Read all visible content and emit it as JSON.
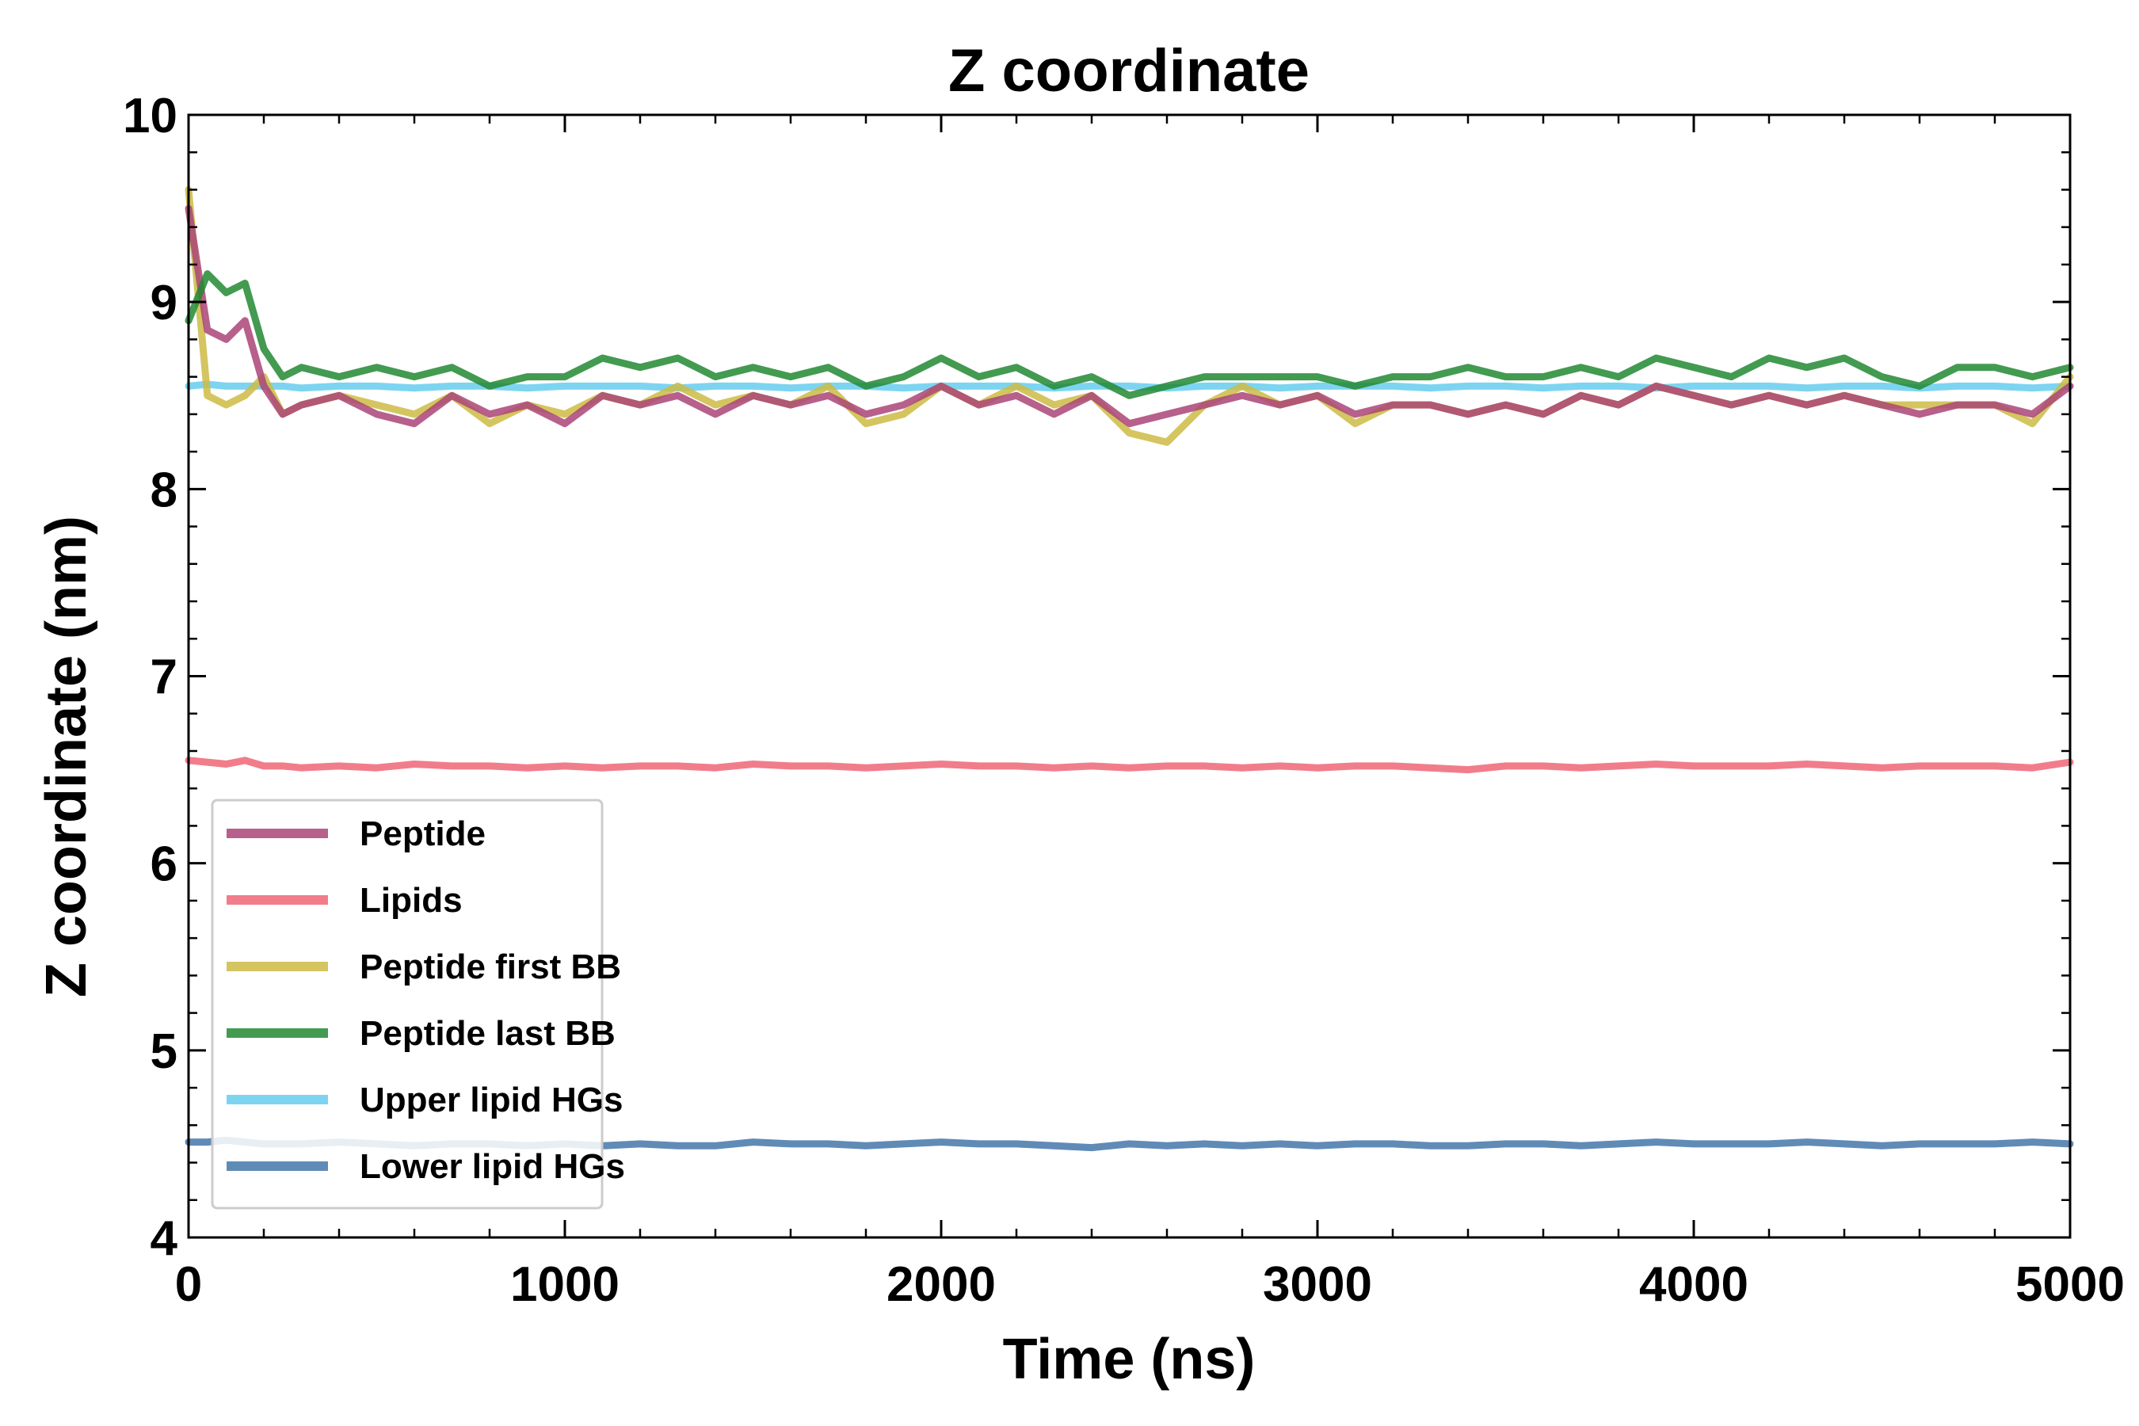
{
  "chart_data": {
    "type": "line",
    "title": "Z coordinate",
    "xlabel": "Time (ns)",
    "ylabel": "Z coordinate (nm)",
    "xlim": [
      0,
      5000
    ],
    "ylim": [
      4,
      10
    ],
    "xticks": [
      0,
      1000,
      2000,
      3000,
      4000,
      5000
    ],
    "yticks": [
      4,
      5,
      6,
      7,
      8,
      9,
      10
    ],
    "grid": false,
    "legend_position": "lower-left",
    "x": [
      0,
      50,
      100,
      150,
      200,
      250,
      300,
      400,
      500,
      600,
      700,
      800,
      900,
      1000,
      1100,
      1200,
      1300,
      1400,
      1500,
      1600,
      1700,
      1800,
      1900,
      2000,
      2100,
      2200,
      2300,
      2400,
      2500,
      2600,
      2700,
      2800,
      2900,
      3000,
      3100,
      3200,
      3300,
      3400,
      3500,
      3600,
      3700,
      3800,
      3900,
      4000,
      4100,
      4200,
      4300,
      4400,
      4500,
      4600,
      4700,
      4800,
      4900,
      5000
    ],
    "series": [
      {
        "name": "Peptide",
        "color": "#aa4477",
        "values": [
          9.5,
          8.85,
          8.8,
          8.9,
          8.55,
          8.4,
          8.45,
          8.5,
          8.4,
          8.35,
          8.5,
          8.4,
          8.45,
          8.35,
          8.5,
          8.45,
          8.5,
          8.4,
          8.5,
          8.45,
          8.5,
          8.4,
          8.45,
          8.55,
          8.45,
          8.5,
          8.4,
          8.5,
          8.35,
          8.4,
          8.45,
          8.5,
          8.45,
          8.5,
          8.4,
          8.45,
          8.45,
          8.4,
          8.45,
          8.4,
          8.5,
          8.45,
          8.55,
          8.5,
          8.45,
          8.5,
          8.45,
          8.5,
          8.45,
          8.4,
          8.45,
          8.45,
          8.4,
          8.55
        ]
      },
      {
        "name": "Lipids",
        "color": "#ee6677",
        "values": [
          6.55,
          6.54,
          6.53,
          6.55,
          6.52,
          6.52,
          6.51,
          6.52,
          6.51,
          6.53,
          6.52,
          6.52,
          6.51,
          6.52,
          6.51,
          6.52,
          6.52,
          6.51,
          6.53,
          6.52,
          6.52,
          6.51,
          6.52,
          6.53,
          6.52,
          6.52,
          6.51,
          6.52,
          6.51,
          6.52,
          6.52,
          6.51,
          6.52,
          6.51,
          6.52,
          6.52,
          6.51,
          6.5,
          6.52,
          6.52,
          6.51,
          6.52,
          6.53,
          6.52,
          6.52,
          6.52,
          6.53,
          6.52,
          6.51,
          6.52,
          6.52,
          6.52,
          6.51,
          6.54
        ]
      },
      {
        "name": "Peptide first BB",
        "color": "#ccbb44",
        "values": [
          9.6,
          8.5,
          8.45,
          8.5,
          8.6,
          8.4,
          8.45,
          8.5,
          8.45,
          8.4,
          8.5,
          8.35,
          8.45,
          8.4,
          8.5,
          8.45,
          8.55,
          8.45,
          8.5,
          8.45,
          8.55,
          8.35,
          8.4,
          8.55,
          8.45,
          8.55,
          8.45,
          8.5,
          8.3,
          8.25,
          8.45,
          8.55,
          8.45,
          8.5,
          8.35,
          8.45,
          8.45,
          8.4,
          8.45,
          8.4,
          8.5,
          8.45,
          8.55,
          8.5,
          8.45,
          8.5,
          8.45,
          8.5,
          8.45,
          8.45,
          8.45,
          8.45,
          8.35,
          8.6
        ]
      },
      {
        "name": "Peptide last BB",
        "color": "#228833",
        "values": [
          8.9,
          9.15,
          9.05,
          9.1,
          8.75,
          8.6,
          8.65,
          8.6,
          8.65,
          8.6,
          8.65,
          8.55,
          8.6,
          8.6,
          8.7,
          8.65,
          8.7,
          8.6,
          8.65,
          8.6,
          8.65,
          8.55,
          8.6,
          8.7,
          8.6,
          8.65,
          8.55,
          8.6,
          8.5,
          8.55,
          8.6,
          8.6,
          8.6,
          8.6,
          8.55,
          8.6,
          8.6,
          8.65,
          8.6,
          8.6,
          8.65,
          8.6,
          8.7,
          8.65,
          8.6,
          8.7,
          8.65,
          8.7,
          8.6,
          8.55,
          8.65,
          8.65,
          8.6,
          8.65
        ]
      },
      {
        "name": "Upper lipid HGs",
        "color": "#66ccee",
        "values": [
          8.55,
          8.56,
          8.55,
          8.55,
          8.55,
          8.55,
          8.54,
          8.55,
          8.55,
          8.54,
          8.55,
          8.55,
          8.54,
          8.55,
          8.55,
          8.55,
          8.54,
          8.55,
          8.55,
          8.54,
          8.55,
          8.55,
          8.54,
          8.55,
          8.55,
          8.55,
          8.54,
          8.55,
          8.55,
          8.54,
          8.55,
          8.55,
          8.54,
          8.55,
          8.55,
          8.55,
          8.54,
          8.55,
          8.55,
          8.54,
          8.55,
          8.55,
          8.54,
          8.55,
          8.55,
          8.55,
          8.54,
          8.55,
          8.55,
          8.54,
          8.55,
          8.55,
          8.54,
          8.55
        ]
      },
      {
        "name": "Lower lipid HGs",
        "color": "#4477aa",
        "values": [
          4.51,
          4.51,
          4.52,
          4.51,
          4.5,
          4.5,
          4.5,
          4.51,
          4.5,
          4.49,
          4.5,
          4.5,
          4.49,
          4.5,
          4.49,
          4.5,
          4.49,
          4.49,
          4.51,
          4.5,
          4.5,
          4.49,
          4.5,
          4.51,
          4.5,
          4.5,
          4.49,
          4.48,
          4.5,
          4.49,
          4.5,
          4.49,
          4.5,
          4.49,
          4.5,
          4.5,
          4.49,
          4.49,
          4.5,
          4.5,
          4.49,
          4.5,
          4.51,
          4.5,
          4.5,
          4.5,
          4.51,
          4.5,
          4.49,
          4.5,
          4.5,
          4.5,
          4.51,
          4.5
        ]
      }
    ]
  }
}
